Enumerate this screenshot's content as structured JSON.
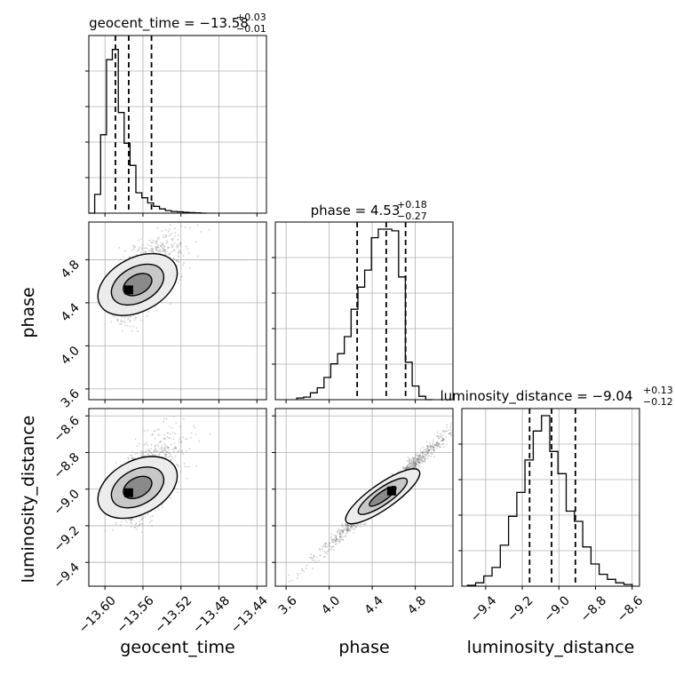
{
  "chart_data": {
    "type": "corner",
    "parameters": [
      {
        "name": "geocent_time",
        "title": {
          "prefix": "geocent_time = −13.58",
          "plus": "+0.03",
          "minus": "−0.01"
        },
        "xlabel": "geocent_time",
        "range": [
          -13.617,
          -13.43
        ],
        "ticks": [
          -13.6,
          -13.56,
          -13.52,
          -13.48,
          -13.44
        ],
        "tick_labels": [
          "−13.60",
          "−13.56",
          "−13.52",
          "−13.48",
          "−13.44"
        ],
        "quantiles": [
          -13.589,
          -13.575,
          -13.551
        ],
        "hist": {
          "edges": [
            -13.617,
            -13.6108,
            -13.6046,
            -13.5984,
            -13.5922,
            -13.586,
            -13.5798,
            -13.5736,
            -13.5674,
            -13.5612,
            -13.555,
            -13.5488,
            -13.5426,
            -13.5364,
            -13.5302,
            -13.524,
            -13.5178,
            -13.5116,
            -13.5054,
            -13.4992,
            -13.493
          ],
          "counts": [
            0,
            0.11,
            0.46,
            0.9,
            0.96,
            0.59,
            0.41,
            0.28,
            0.12,
            0.09,
            0.06,
            0.04,
            0.025,
            0.015,
            0.01,
            0.008,
            0.005,
            0.003,
            0.002,
            0
          ]
        }
      },
      {
        "name": "phase",
        "title": {
          "prefix": "phase = 4.53",
          "plus": "+0.18",
          "minus": "−0.27"
        },
        "ylabel": "phase",
        "xlabel": "phase",
        "range": [
          3.5,
          5.15
        ],
        "ticks": [
          3.6,
          4.0,
          4.4,
          4.8
        ],
        "tick_labels": [
          "3.6",
          "4.0",
          "4.4",
          "4.8"
        ],
        "quantiles": [
          4.26,
          4.53,
          4.71
        ],
        "hist": {
          "edges": [
            3.7,
            3.763,
            3.826,
            3.889,
            3.952,
            4.015,
            4.078,
            4.141,
            4.204,
            4.267,
            4.33,
            4.393,
            4.456,
            4.519,
            4.582,
            4.645,
            4.708,
            4.771,
            4.834,
            4.897,
            4.96
          ],
          "counts": [
            0.01,
            0.015,
            0.04,
            0.07,
            0.13,
            0.21,
            0.27,
            0.37,
            0.53,
            0.66,
            0.76,
            0.95,
            1.0,
            1.0,
            0.99,
            0.72,
            0.22,
            0.08,
            0.02,
            0
          ]
        }
      },
      {
        "name": "luminosity_distance",
        "title": {
          "prefix": "luminosity_distance = −9.04",
          "plus": "+0.13",
          "minus": "−0.12"
        },
        "ylabel": "luminosity_distance",
        "xlabel": "luminosity_distance",
        "range": [
          -9.53,
          -8.56
        ],
        "ticks": [
          -9.4,
          -9.2,
          -9.0,
          -8.8,
          -8.6
        ],
        "tick_labels": [
          "−9.4",
          "−9.2",
          "−9.0",
          "−8.8",
          "−8.6"
        ],
        "quantiles": [
          -9.16,
          -9.04,
          -8.91
        ],
        "hist": {
          "edges": [
            -9.5,
            -9.455,
            -9.41,
            -9.365,
            -9.32,
            -9.275,
            -9.23,
            -9.185,
            -9.14,
            -9.095,
            -9.05,
            -9.005,
            -8.96,
            -8.915,
            -8.87,
            -8.825,
            -8.78,
            -8.735,
            -8.69,
            -8.645,
            -8.6
          ],
          "counts": [
            0.005,
            0.02,
            0.06,
            0.11,
            0.24,
            0.41,
            0.55,
            0.74,
            0.91,
            1.0,
            0.79,
            0.66,
            0.44,
            0.38,
            0.23,
            0.13,
            0.07,
            0.04,
            0.02,
            0.01
          ]
        }
      }
    ],
    "pairs": [
      {
        "x": "geocent_time",
        "y": "phase",
        "mode": [
          -13.575,
          4.52
        ]
      },
      {
        "x": "geocent_time",
        "y": "luminosity_distance",
        "mode": [
          -13.575,
          -9.02
        ]
      },
      {
        "x": "phase",
        "y": "luminosity_distance",
        "mode": [
          4.58,
          -9.01
        ]
      }
    ],
    "grid": true,
    "colors": {
      "line": "#000000",
      "grid": "#b0b0b0",
      "points": "#555555"
    }
  }
}
